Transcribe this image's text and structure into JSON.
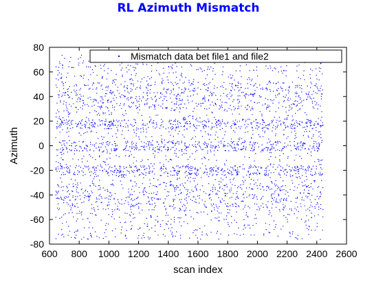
{
  "chart_data": {
    "type": "scatter",
    "title": "RL Azimuth Mismatch",
    "xlabel": "scan index",
    "ylabel": "Azimuth",
    "xlim": [
      600,
      2600
    ],
    "ylim": [
      -80,
      80
    ],
    "x_ticks": [
      600,
      800,
      1000,
      1200,
      1400,
      1600,
      1800,
      2000,
      2200,
      2400,
      2600
    ],
    "y_ticks": [
      -80,
      -60,
      -40,
      -20,
      0,
      20,
      40,
      60,
      80
    ],
    "grid": false,
    "legend": {
      "placement": "top-center",
      "entries": [
        "Mismatch data bet file1 and file2"
      ]
    },
    "series": [
      {
        "name": "Mismatch data bet file1 and file2",
        "color": "#0000ff",
        "marker": "point",
        "x_range": [
          640,
          2440
        ],
        "y_range": [
          -76,
          74
        ],
        "dense_bands_y": [
          [
            -52,
            -30
          ],
          [
            30,
            52
          ],
          [
            -24,
            -16
          ],
          [
            14,
            22
          ],
          [
            -4,
            4
          ]
        ]
      }
    ],
    "title_color": "#0000ff"
  }
}
